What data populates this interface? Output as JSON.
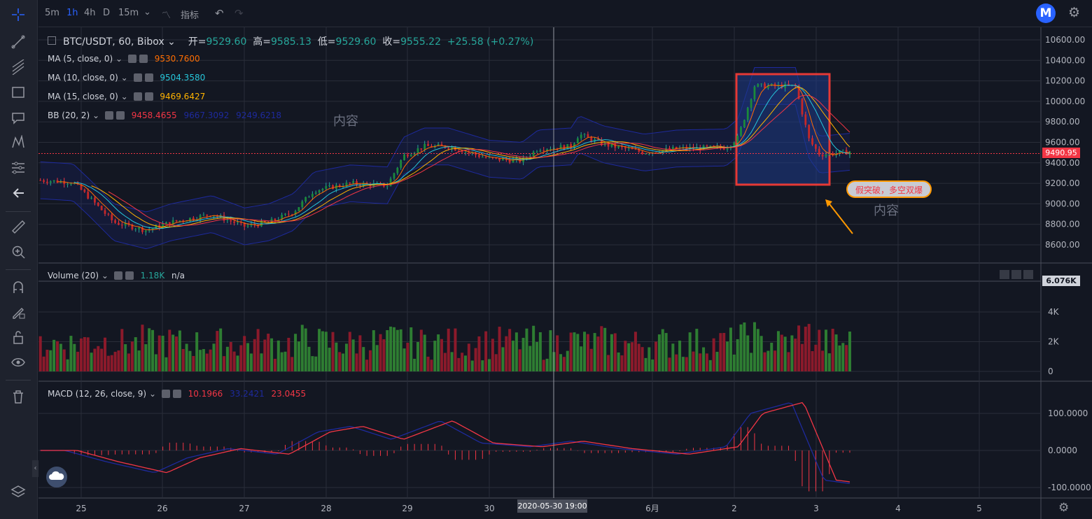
{
  "toolbar": {
    "timeframes": [
      "5m",
      "1h",
      "4h",
      "D",
      "15m"
    ],
    "active_timeframe": "1h",
    "indicators_label": "指标"
  },
  "symbol_header": {
    "symbol": "BTC/USDT, 60, Bibox",
    "open_label": "开=",
    "open": "9529.60",
    "high_label": "高=",
    "high": "9585.13",
    "low_label": "低=",
    "low": "9529.60",
    "close_label": "收=",
    "close": "9555.22",
    "change": "+25.58 (+0.27%)"
  },
  "indicators": [
    {
      "label": "MA (5, close, 0)",
      "value": "9530.7600",
      "color": "#ff6d00"
    },
    {
      "label": "MA (10, close, 0)",
      "value": "9504.3580",
      "color": "#26c6da"
    },
    {
      "label": "MA (15, close, 0)",
      "value": "9469.6427",
      "color": "#ffb300"
    },
    {
      "label": "BB (20, 2)",
      "value": "9458.4655",
      "value2": "9667.3092",
      "value3": "9249.6218",
      "color": "#f23645",
      "color2": "#1e2a9c"
    }
  ],
  "volume_panel": {
    "label": "Volume (20)",
    "value": "1.18K",
    "value2": "n/a",
    "last_tag": "6.076K"
  },
  "macd_panel": {
    "label": "MACD (12, 26, close, 9)",
    "value": "10.1966",
    "value2": "33.2421",
    "value3": "23.0455"
  },
  "price_axis": [
    "10600.00",
    "10400.00",
    "10200.00",
    "10000.00",
    "9800.00",
    "9600.00",
    "9400.00",
    "9200.00",
    "9000.00",
    "8800.00",
    "8600.00"
  ],
  "current_price": "9490.95",
  "volume_axis": [
    "4K",
    "2K",
    "0"
  ],
  "macd_axis": [
    "100.0000",
    "0.0000",
    "-100.0000"
  ],
  "time_axis": [
    "25",
    "26",
    "27",
    "28",
    "29",
    "30",
    "6月",
    "2",
    "3",
    "4",
    "5"
  ],
  "crosshair_time": "2020-05-30  19:00",
  "annotations": {
    "callout": "假突破，多空双爆",
    "note1": "内容",
    "note2": "内容"
  },
  "colors": {
    "up": "#26a69a",
    "down": "#f23645",
    "volume_up": "#2e7d32",
    "volume_down": "#8b1a2b",
    "accent": "#2962ff"
  }
}
